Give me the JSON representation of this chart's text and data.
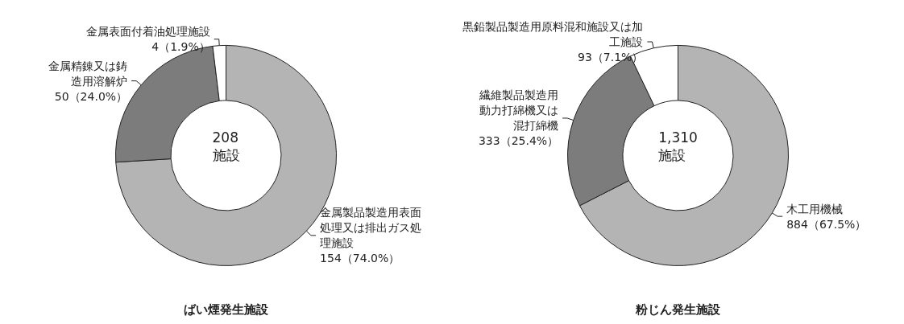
{
  "chart_data": [
    {
      "type": "donut",
      "title": "ばい煙発生施設",
      "annotations": [
        "208\n施設"
      ],
      "categories": [
        "金属製品製造用表面処理又は排出ガス処理施設",
        "金属精錬又は鋳造用溶解炉",
        "金属表面付着油処理施設"
      ],
      "values": [
        154,
        50,
        4
      ],
      "value_labels": [
        "154（74.0%）",
        "50（24.0%）",
        "4（1.9%）"
      ],
      "colors": [
        "#b4b4b4",
        "#7c7c7c",
        "#ffffff"
      ],
      "legend": false
    },
    {
      "type": "donut",
      "title": "粉じん発生施設",
      "annotations": [
        "1,310\n施設"
      ],
      "categories": [
        "木工用機械",
        "繊維製品製造用動力打綿機又は混打綿機",
        "黒鉛製品製造用原料混和施設又は加工施設"
      ],
      "values": [
        884,
        333,
        93
      ],
      "value_labels": [
        "884（67.5%）",
        "333（25.4%）",
        "93（7.1%）"
      ],
      "colors": [
        "#b4b4b4",
        "#7c7c7c",
        "#ffffff"
      ],
      "legend": false
    }
  ]
}
